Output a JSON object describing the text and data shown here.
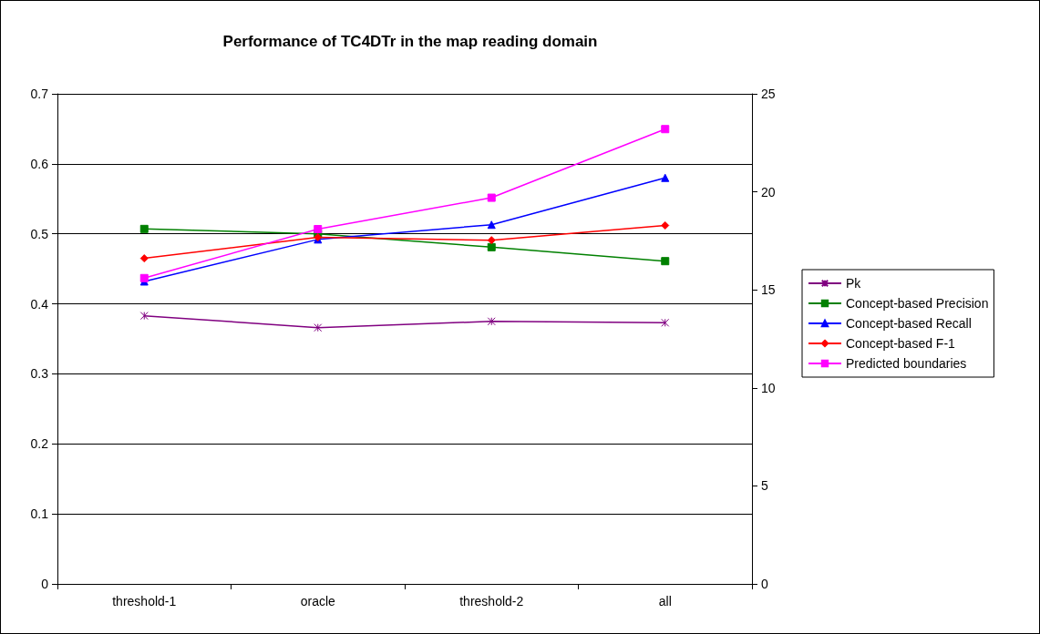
{
  "chart_data": {
    "type": "line",
    "title": "Performance of TC4DTr in the map reading domain",
    "categories": [
      "threshold-1",
      "oracle",
      "threshold-2",
      "all"
    ],
    "series": [
      {
        "name": "Pk",
        "color": "#800080",
        "marker": "cross",
        "values": [
          0.383,
          0.366,
          0.375,
          0.373
        ]
      },
      {
        "name": "Concept-based Precision",
        "color": "#008000",
        "marker": "square",
        "values": [
          0.507,
          0.5,
          0.481,
          0.461
        ]
      },
      {
        "name": "Concept-based Recall",
        "color": "#0000ff",
        "marker": "triangle",
        "values": [
          0.432,
          0.492,
          0.513,
          0.58
        ]
      },
      {
        "name": "Concept-based F-1",
        "color": "#ff0000",
        "marker": "diamond",
        "values": [
          0.465,
          0.495,
          0.491,
          0.512
        ]
      },
      {
        "name": "Predicted boundaries",
        "color": "#ff00ff",
        "marker": "square",
        "axis": "y2",
        "values": [
          15.6,
          18.1,
          19.7,
          23.2
        ]
      }
    ],
    "ylim": [
      0,
      0.7
    ],
    "yticks": [
      0,
      0.1,
      0.2,
      0.3,
      0.4,
      0.5,
      0.6,
      0.7
    ],
    "y2lim": [
      0,
      25
    ],
    "y2ticks": [
      0,
      5,
      10,
      15,
      20,
      25
    ],
    "grid": "y",
    "legend": "right",
    "line_style": "solid"
  }
}
